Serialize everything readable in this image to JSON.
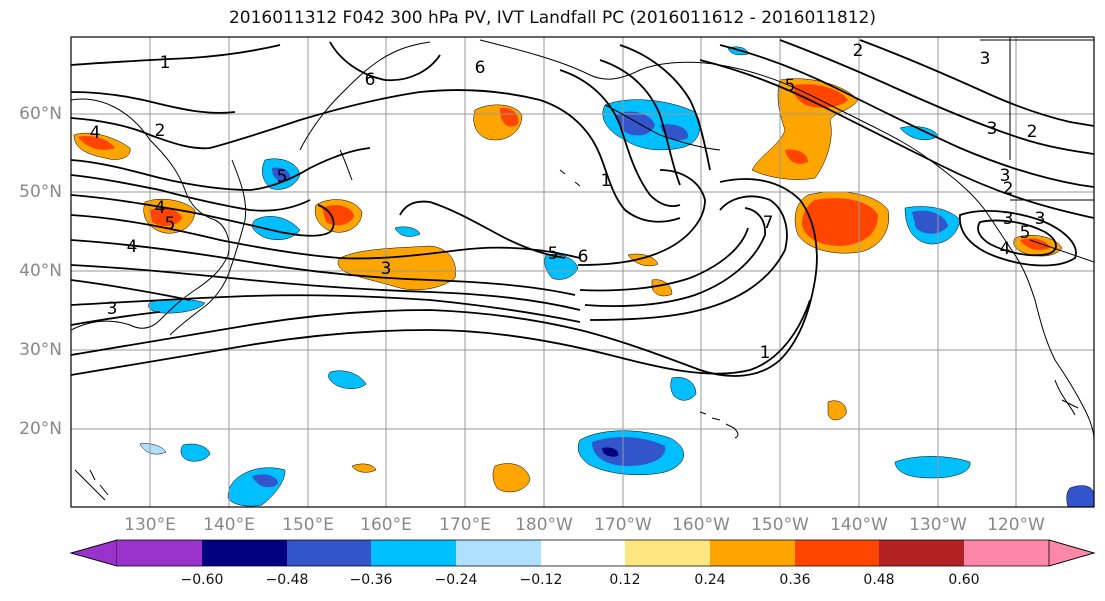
{
  "title": "2016011312 F042 300 hPa PV, IVT Landfall PC (2016011612 - 2016011812)",
  "map": {
    "lat_labels": [
      "60°N",
      "50°N",
      "40°N",
      "30°N",
      "20°N"
    ],
    "lon_labels": [
      "130°E",
      "140°E",
      "150°E",
      "160°E",
      "170°E",
      "180°W",
      "170°W",
      "160°W",
      "150°W",
      "140°W",
      "130°W",
      "120°W"
    ]
  },
  "contour_labels": [
    "1",
    "2",
    "4",
    "5",
    "6",
    "6",
    "2",
    "3",
    "3",
    "2",
    "4",
    "5",
    "4",
    "3",
    "5",
    "6",
    "1",
    "5",
    "7",
    "3",
    "3",
    "2",
    "3",
    "5",
    "4",
    "3",
    "1"
  ],
  "colorbar": {
    "colors": [
      "#9933cc",
      "#000080",
      "#3355cc",
      "#00bfff",
      "#b0e0ff",
      "#ffffff",
      "#ffe680",
      "#ffa500",
      "#ff4500",
      "#b22222",
      "#ff88aa"
    ],
    "tick_labels": [
      "−0.60",
      "−0.48",
      "−0.36",
      "−0.24",
      "−0.12",
      "0.12",
      "0.24",
      "0.36",
      "0.48",
      "0.60"
    ]
  }
}
